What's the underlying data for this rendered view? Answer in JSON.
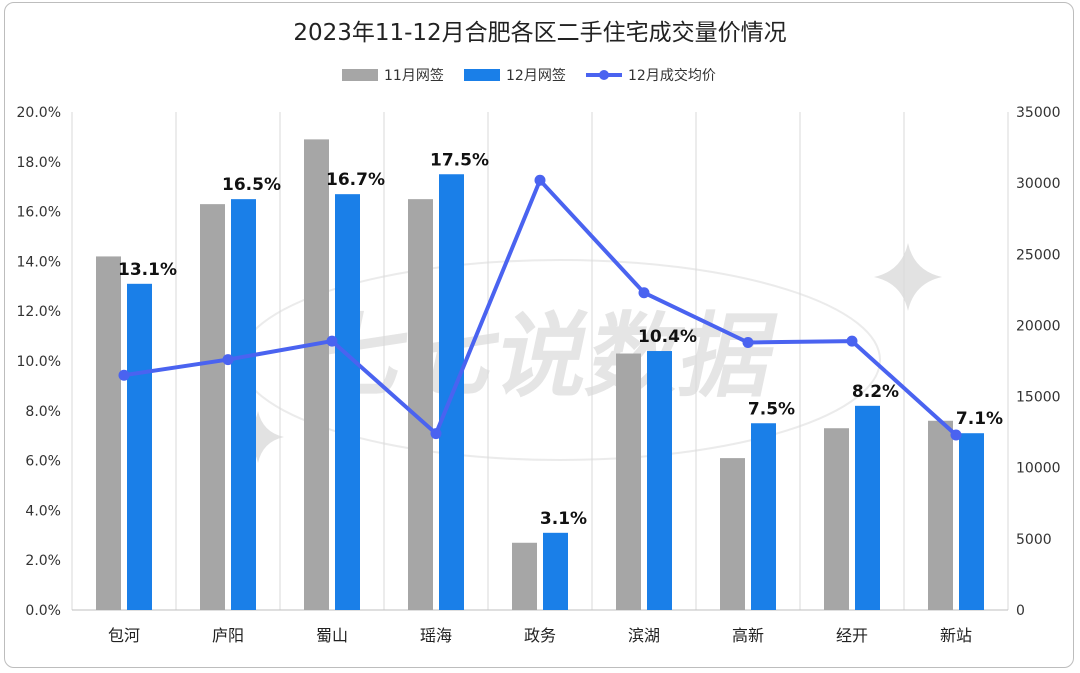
{
  "chart_data": {
    "type": "bar",
    "title": "2023年11-12月合肥各区二手住宅成交量价情况",
    "categories": [
      "包河",
      "庐阳",
      "蜀山",
      "瑶海",
      "政务",
      "滨湖",
      "高新",
      "经开",
      "新站"
    ],
    "series": [
      {
        "name": "11月网签",
        "kind": "bar",
        "axis": "left",
        "color": "#a6a6a6",
        "values": [
          14.2,
          16.3,
          18.9,
          16.5,
          2.7,
          10.3,
          6.1,
          7.3,
          7.6
        ]
      },
      {
        "name": "12月网签",
        "kind": "bar",
        "axis": "left",
        "color": "#1a7fe8",
        "values": [
          13.1,
          16.5,
          16.7,
          17.5,
          3.1,
          10.4,
          7.5,
          8.2,
          7.1
        ],
        "data_labels": [
          "13.1%",
          "16.5%",
          "16.7%",
          "17.5%",
          "3.1%",
          "10.4%",
          "7.5%",
          "8.2%",
          "7.1%"
        ]
      },
      {
        "name": "12月成交均价",
        "kind": "line",
        "axis": "right",
        "color": "#4a63f0",
        "values": [
          16500,
          17600,
          18900,
          12400,
          30200,
          22300,
          18800,
          18900,
          12300
        ]
      }
    ],
    "y_left": {
      "min": 0,
      "max": 20,
      "step": 2,
      "tick_labels": [
        "0.0%",
        "2.0%",
        "4.0%",
        "6.0%",
        "8.0%",
        "10.0%",
        "12.0%",
        "14.0%",
        "16.0%",
        "18.0%",
        "20.0%"
      ]
    },
    "y_right": {
      "min": 0,
      "max": 35000,
      "step": 5000,
      "tick_labels": [
        "0",
        "5000",
        "10000",
        "15000",
        "20000",
        "25000",
        "30000",
        "35000"
      ]
    },
    "grid": "vertical",
    "legend": "top-center"
  },
  "watermark": "七七说数据"
}
